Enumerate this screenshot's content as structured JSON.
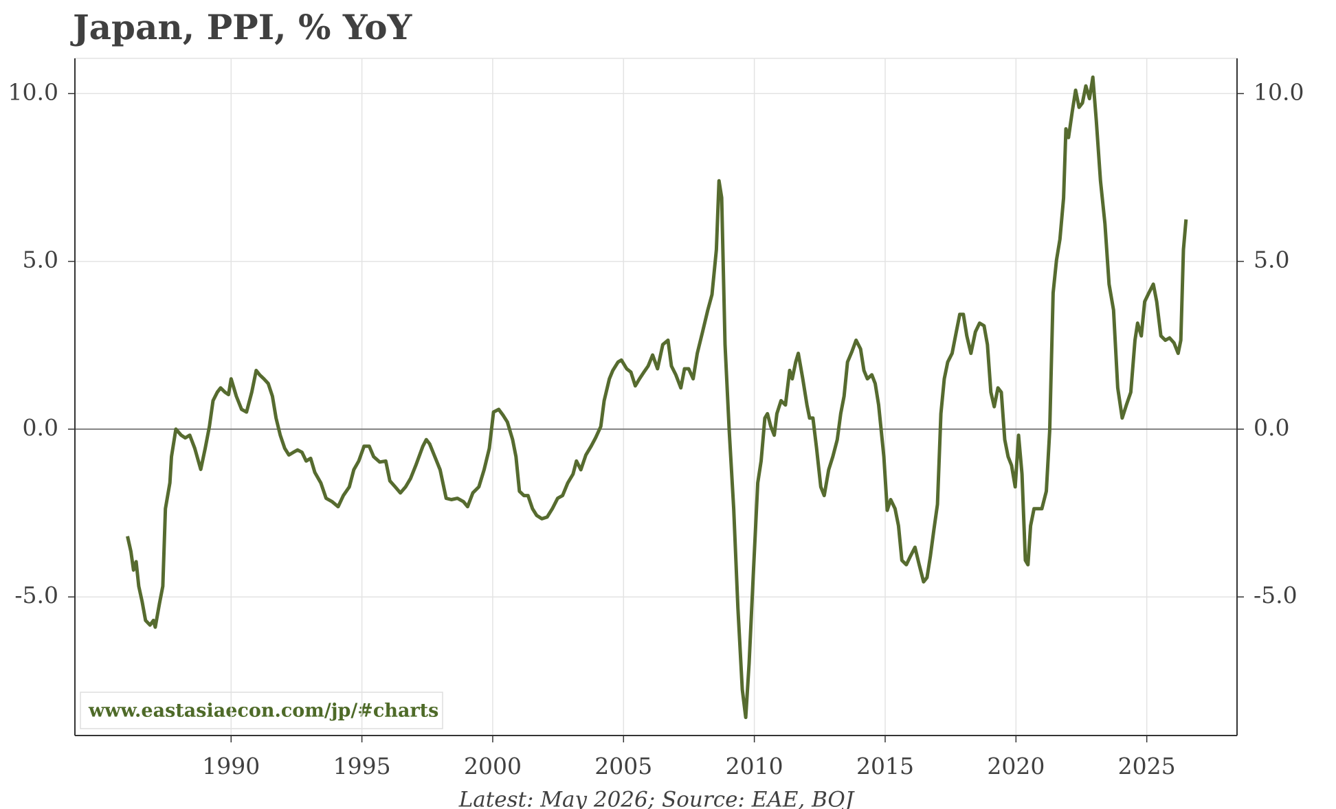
{
  "chart_data": {
    "type": "line",
    "title": "Japan, PPI, % YoY",
    "footnote": "Latest: May 2026; Source: EAE, BOJ",
    "watermark": "www.eastasiaecon.com/jp/#charts",
    "xlim": [
      1984.03,
      2028.45
    ],
    "ylim": [
      -9.13,
      11.05
    ],
    "xticks": [
      1990,
      1995,
      2000,
      2005,
      2010,
      2015,
      2020,
      2025
    ],
    "yticks": [
      {
        "value": -5,
        "label": "-5.0"
      },
      {
        "value": 0,
        "label": "0.0"
      },
      {
        "value": 5,
        "label": "5.0"
      },
      {
        "value": 10,
        "label": "10.0"
      }
    ],
    "grid": true,
    "series": [
      {
        "color": "#566b2f",
        "x": [
          1986.04,
          1986.17,
          1986.27,
          1986.37,
          1986.47,
          1986.6,
          1986.73,
          1986.9,
          1987.03,
          1987.1,
          1987.26,
          1987.39,
          1987.49,
          1987.66,
          1987.72,
          1987.89,
          1988.09,
          1988.25,
          1988.42,
          1988.61,
          1988.84,
          1989.01,
          1989.17,
          1989.31,
          1989.47,
          1989.6,
          1989.77,
          1989.9,
          1990.0,
          1990.2,
          1990.4,
          1990.59,
          1990.79,
          1990.96,
          1991.09,
          1991.25,
          1991.42,
          1991.58,
          1991.72,
          1991.88,
          1992.05,
          1992.21,
          1992.38,
          1992.54,
          1992.71,
          1992.87,
          1993.04,
          1993.2,
          1993.43,
          1993.63,
          1993.86,
          1994.09,
          1994.29,
          1994.52,
          1994.69,
          1994.88,
          1995.08,
          1995.28,
          1995.45,
          1995.68,
          1995.91,
          1996.07,
          1996.27,
          1996.47,
          1996.67,
          1996.86,
          1997.06,
          1997.33,
          1997.46,
          1997.59,
          1997.76,
          1997.99,
          1998.22,
          1998.42,
          1998.65,
          1998.88,
          1999.04,
          1999.24,
          1999.47,
          1999.67,
          1999.87,
          2000.03,
          2000.23,
          2000.4,
          2000.56,
          2000.76,
          2000.89,
          2001.02,
          2001.19,
          2001.35,
          2001.52,
          2001.68,
          2001.88,
          2002.08,
          2002.28,
          2002.48,
          2002.67,
          2002.87,
          2003.07,
          2003.2,
          2003.37,
          2003.56,
          2003.76,
          2003.93,
          2004.13,
          2004.26,
          2004.46,
          2004.59,
          2004.79,
          2004.92,
          2005.12,
          2005.28,
          2005.45,
          2005.61,
          2005.78,
          2005.94,
          2006.11,
          2006.3,
          2006.5,
          2006.7,
          2006.83,
          2007.0,
          2007.19,
          2007.33,
          2007.49,
          2007.66,
          2007.82,
          2008.02,
          2008.22,
          2008.38,
          2008.55,
          2008.65,
          2008.75,
          2008.88,
          2009.04,
          2009.21,
          2009.37,
          2009.54,
          2009.67,
          2009.8,
          2009.97,
          2010.13,
          2010.26,
          2010.4,
          2010.5,
          2010.63,
          2010.76,
          2010.86,
          2011.02,
          2011.19,
          2011.35,
          2011.45,
          2011.58,
          2011.68,
          2011.85,
          2012.01,
          2012.11,
          2012.24,
          2012.38,
          2012.54,
          2012.67,
          2012.84,
          2013.0,
          2013.17,
          2013.3,
          2013.43,
          2013.56,
          2013.73,
          2013.89,
          2014.06,
          2014.19,
          2014.32,
          2014.49,
          2014.62,
          2014.75,
          2014.85,
          2014.95,
          2015.08,
          2015.21,
          2015.38,
          2015.51,
          2015.64,
          2015.81,
          2015.97,
          2016.14,
          2016.3,
          2016.47,
          2016.6,
          2016.73,
          2016.86,
          2017.0,
          2017.13,
          2017.26,
          2017.39,
          2017.56,
          2017.72,
          2017.85,
          2017.99,
          2018.12,
          2018.28,
          2018.45,
          2018.61,
          2018.78,
          2018.91,
          2019.04,
          2019.17,
          2019.31,
          2019.44,
          2019.57,
          2019.7,
          2019.83,
          2019.97,
          2020.1,
          2020.23,
          2020.36,
          2020.46,
          2020.56,
          2020.69,
          2020.86,
          2020.99,
          2021.16,
          2021.29,
          2021.42,
          2021.55,
          2021.68,
          2021.82,
          2021.91,
          2022.01,
          2022.15,
          2022.28,
          2022.41,
          2022.54,
          2022.67,
          2022.81,
          2022.94,
          2023.07,
          2023.23,
          2023.4,
          2023.56,
          2023.73,
          2023.89,
          2024.06,
          2024.22,
          2024.39,
          2024.55,
          2024.65,
          2024.79,
          2024.92,
          2025.08,
          2025.25,
          2025.38,
          2025.54,
          2025.71,
          2025.87,
          2026.04,
          2026.2,
          2026.3,
          2026.4,
          2026.5
        ],
        "values": [
          -3.19,
          -3.65,
          -4.2,
          -3.95,
          -4.68,
          -5.14,
          -5.7,
          -5.84,
          -5.7,
          -5.9,
          -5.2,
          -4.68,
          -2.37,
          -1.6,
          -0.82,
          0,
          -0.18,
          -0.26,
          -0.18,
          -0.57,
          -1.2,
          -0.57,
          0.08,
          0.85,
          1.1,
          1.23,
          1.1,
          1.03,
          1.5,
          0.98,
          0.59,
          0.51,
          1.1,
          1.75,
          1.62,
          1.5,
          1.36,
          0.98,
          0.33,
          -0.18,
          -0.57,
          -0.77,
          -0.69,
          -0.62,
          -0.69,
          -0.95,
          -0.87,
          -1.29,
          -1.6,
          -2.06,
          -2.16,
          -2.31,
          -1.98,
          -1.72,
          -1.21,
          -0.95,
          -0.51,
          -0.51,
          -0.82,
          -0.98,
          -0.95,
          -1.54,
          -1.72,
          -1.9,
          -1.72,
          -1.47,
          -1.08,
          -0.51,
          -0.31,
          -0.44,
          -0.77,
          -1.21,
          -2.06,
          -2.1,
          -2.06,
          -2.16,
          -2.31,
          -1.9,
          -1.72,
          -1.21,
          -0.57,
          0.51,
          0.59,
          0.41,
          0.21,
          -0.31,
          -0.82,
          -1.85,
          -1.98,
          -1.98,
          -2.37,
          -2.57,
          -2.67,
          -2.62,
          -2.37,
          -2.06,
          -1.98,
          -1.6,
          -1.34,
          -0.95,
          -1.21,
          -0.77,
          -0.51,
          -0.26,
          0.08,
          0.85,
          1.5,
          1.75,
          2.0,
          2.06,
          1.8,
          1.7,
          1.29,
          1.5,
          1.7,
          1.88,
          2.21,
          1.8,
          2.52,
          2.65,
          1.88,
          1.62,
          1.23,
          1.8,
          1.8,
          1.5,
          2.26,
          2.9,
          3.55,
          4.01,
          5.35,
          7.4,
          6.9,
          2.52,
          -0.05,
          -2.37,
          -5.32,
          -7.76,
          -8.59,
          -6.99,
          -4.16,
          -1.6,
          -0.95,
          0.33,
          0.46,
          0.08,
          -0.18,
          0.46,
          0.85,
          0.72,
          1.75,
          1.5,
          2.0,
          2.26,
          1.5,
          0.72,
          0.33,
          0.33,
          -0.57,
          -1.72,
          -1.98,
          -1.21,
          -0.82,
          -0.31,
          0.46,
          0.98,
          2.0,
          2.31,
          2.65,
          2.39,
          1.75,
          1.5,
          1.62,
          1.36,
          0.72,
          -0.05,
          -0.82,
          -2.42,
          -2.1,
          -2.37,
          -2.88,
          -3.91,
          -4.04,
          -3.78,
          -3.52,
          -4.04,
          -4.55,
          -4.42,
          -3.78,
          -3.01,
          -2.24,
          0.46,
          1.5,
          2.0,
          2.26,
          2.9,
          3.42,
          3.42,
          2.78,
          2.26,
          2.9,
          3.16,
          3.08,
          2.52,
          1.1,
          0.67,
          1.23,
          1.1,
          -0.31,
          -0.82,
          -1.08,
          -1.72,
          -0.18,
          -1.34,
          -3.91,
          -4.04,
          -2.88,
          -2.37,
          -2.37,
          -2.37,
          -1.85,
          -0.05,
          4.06,
          5.04,
          5.66,
          6.89,
          8.95,
          8.69,
          9.46,
          10.1,
          9.59,
          9.72,
          10.23,
          9.85,
          10.49,
          9.2,
          7.4,
          6.12,
          4.32,
          3.55,
          1.23,
          0.33,
          0.72,
          1.1,
          2.65,
          3.16,
          2.78,
          3.8,
          4.06,
          4.32,
          3.8,
          2.78,
          2.65,
          2.72,
          2.57,
          2.26,
          2.65,
          5.35,
          6.25
        ]
      }
    ]
  }
}
